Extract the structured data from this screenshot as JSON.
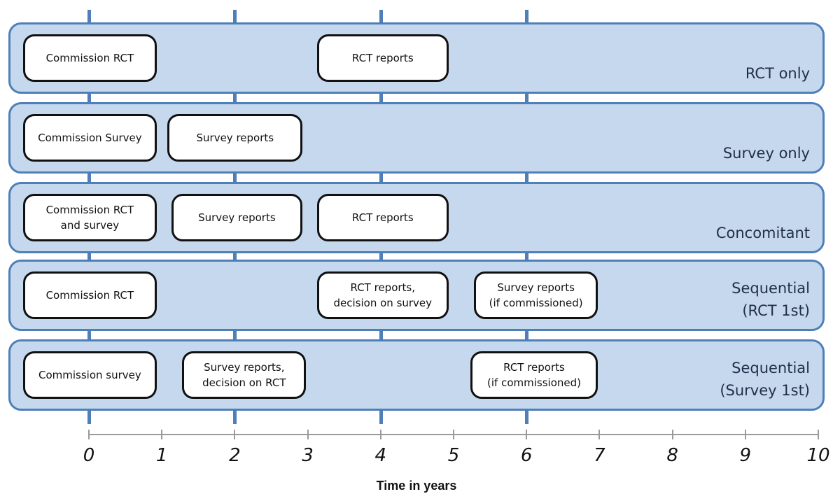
{
  "colors": {
    "band_fill": "#c6d8ee",
    "band_border": "#4f7fb8",
    "box_border": "#111111",
    "guide": "#4f7fb8"
  },
  "axis": {
    "title": "Time in years",
    "min": 0,
    "max": 10,
    "ticks": [
      "0",
      "1",
      "2",
      "3",
      "4",
      "5",
      "6",
      "7",
      "8",
      "9",
      "10"
    ],
    "guide_years": [
      0,
      2,
      4,
      6
    ]
  },
  "rows": [
    {
      "label": "RCT only",
      "boxes": [
        {
          "text": "Commission RCT",
          "start": 0,
          "end": 0.9
        },
        {
          "text": "RCT reports",
          "start": 3.1,
          "end": 4.9
        }
      ]
    },
    {
      "label": "Survey only",
      "boxes": [
        {
          "text": "Commission Survey",
          "start": 0,
          "end": 0.9
        },
        {
          "text": "Survey reports",
          "start": 1.05,
          "end": 2.9
        }
      ]
    },
    {
      "label": "Concomitant",
      "boxes": [
        {
          "text": "Commission RCT\nand survey",
          "start": 0,
          "end": 0.9
        },
        {
          "text": "Survey reports",
          "start": 1.1,
          "end": 2.9
        },
        {
          "text": "RCT reports",
          "start": 3.1,
          "end": 4.9
        }
      ]
    },
    {
      "label": "Sequential\n(RCT 1st)",
      "boxes": [
        {
          "text": "Commission RCT",
          "start": 0,
          "end": 0.9
        },
        {
          "text": "RCT reports,\ndecision on survey",
          "start": 3.1,
          "end": 4.9
        },
        {
          "text": "Survey reports\n(if commissioned)",
          "start": 5.25,
          "end": 6.95
        }
      ]
    },
    {
      "label": "Sequential\n(Survey 1st)",
      "boxes": [
        {
          "text": "Commission survey",
          "start": 0,
          "end": 0.9
        },
        {
          "text": "Survey reports,\ndecision on RCT",
          "start": 1.25,
          "end": 2.95
        },
        {
          "text": "RCT reports\n(if commissioned)",
          "start": 5.2,
          "end": 6.95
        }
      ]
    }
  ]
}
